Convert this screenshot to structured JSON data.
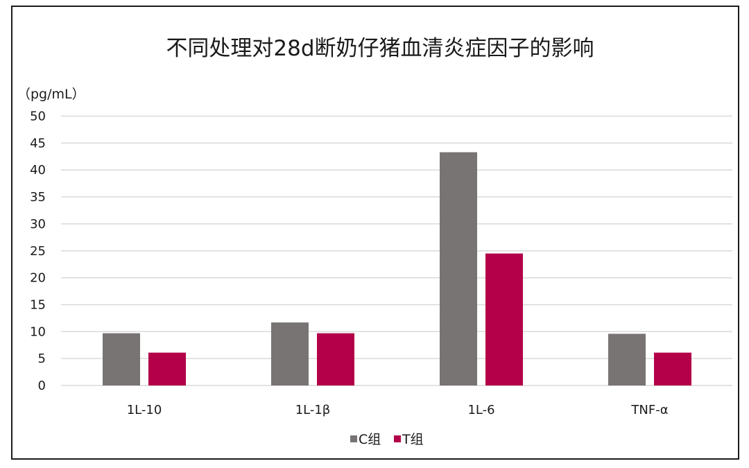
{
  "chart_data": {
    "type": "bar",
    "title": "不同处理对28d断奶仔猪血清炎症因子的影响",
    "ylabel": "（pg/mL）",
    "xlabel": "",
    "categories": [
      "1L-10",
      "1L-1β",
      "1L-6",
      "TNF-α"
    ],
    "series": [
      {
        "name": "C组",
        "color": "#787473",
        "values": [
          9.7,
          11.7,
          43.3,
          9.6
        ]
      },
      {
        "name": "T组",
        "color": "#b30049",
        "values": [
          6.1,
          9.7,
          24.5,
          6.1
        ]
      }
    ],
    "ylim": [
      0,
      50
    ],
    "yticks": [
      0,
      5,
      10,
      15,
      20,
      25,
      30,
      35,
      40,
      45,
      50
    ],
    "grid": true,
    "legend": "bottom-center",
    "gridline_color": "#d9d9d9"
  }
}
